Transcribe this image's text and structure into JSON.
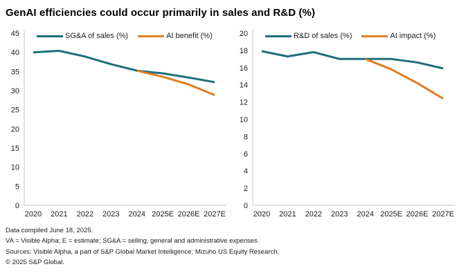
{
  "title": "GenAI efficiencies could occur primarily in sales and R&D (%)",
  "colors": {
    "teal": "#1b6e7c",
    "orange": "#e07c22",
    "axis_line": "#c6c6c6",
    "text": "#1a1a1a"
  },
  "chart_data": [
    {
      "type": "line",
      "name": "sga-chart",
      "categories": [
        "2020",
        "2021",
        "2022",
        "2023",
        "2024",
        "2025E",
        "2026E",
        "2027E"
      ],
      "series": [
        {
          "name": "SG&A of sales (%)",
          "color": "#1b6e7c",
          "values": [
            40.0,
            40.4,
            38.9,
            36.9,
            35.2,
            34.5,
            33.4,
            32.2
          ]
        },
        {
          "name": "AI benefit (%)",
          "color": "#e07c22",
          "values": [
            null,
            null,
            null,
            null,
            35.2,
            33.6,
            31.6,
            28.8
          ]
        }
      ],
      "ylim": [
        0,
        45
      ],
      "ystep": 5,
      "grid": false,
      "legend_position": "top"
    },
    {
      "type": "line",
      "name": "rnd-chart",
      "categories": [
        "2020",
        "2021",
        "2022",
        "2023",
        "2024",
        "2025E",
        "2026E",
        "2027E"
      ],
      "series": [
        {
          "name": "R&D of sales (%)",
          "color": "#1b6e7c",
          "values": [
            17.9,
            17.3,
            17.8,
            17.0,
            17.0,
            17.0,
            16.6,
            15.9
          ]
        },
        {
          "name": "AI impact (%)",
          "color": "#e07c22",
          "values": [
            null,
            null,
            null,
            null,
            17.0,
            15.8,
            14.2,
            12.4
          ]
        }
      ],
      "ylim": [
        0,
        20
      ],
      "ystep": 2,
      "grid": false,
      "legend_position": "top"
    }
  ],
  "footer": {
    "lines": [
      "Data compiled June 18, 2025.",
      "VA = Visible Alpha; E = estimate; SG&A = selling, general and administrative expenses.",
      "Sources: Visible Alpha, a part of S&P Global Market Intelligence; Mizuho US Equity Research.",
      "© 2025 S&P Global."
    ]
  }
}
